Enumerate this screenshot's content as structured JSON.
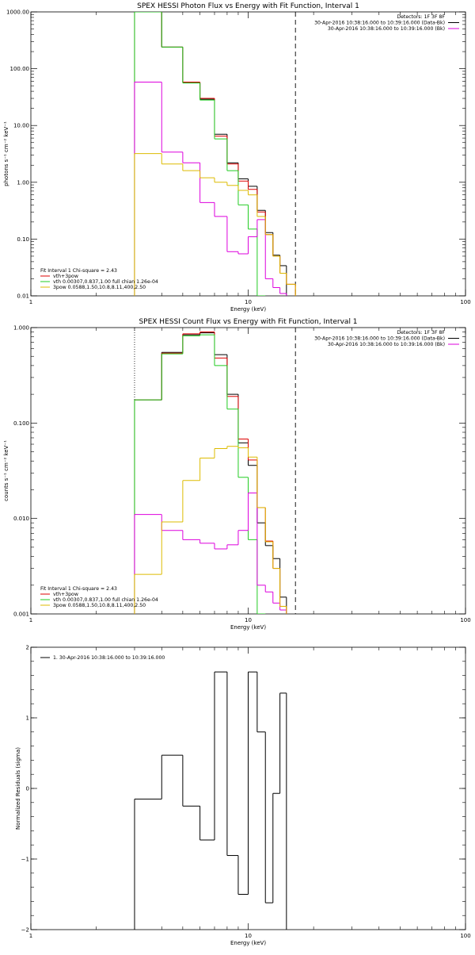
{
  "colors": {
    "black": "#000000",
    "red": "#dd0000",
    "green": "#22cc22",
    "magenta": "#dd00dd",
    "yellow": "#ddbb00"
  },
  "chart_data": [
    {
      "type": "line",
      "title": "SPEX HESSI Photon Flux vs Energy with Fit Function, Interval 1",
      "xlabel": "Energy (keV)",
      "ylabel": "photons s⁻¹ cm⁻² keV⁻¹",
      "xscale": "log",
      "yscale": "log",
      "xlim": [
        1,
        100
      ],
      "ylim": [
        0.01,
        1000
      ],
      "xticks": [
        {
          "v": 1,
          "label": "1"
        },
        {
          "v": 10,
          "label": "10"
        },
        {
          "v": 100,
          "label": "100"
        }
      ],
      "yticks": [
        {
          "v": 0.01,
          "label": "0.01"
        },
        {
          "v": 0.1,
          "label": "0.10"
        },
        {
          "v": 1,
          "label": "1.00"
        },
        {
          "v": 10,
          "label": "10.00"
        },
        {
          "v": 100,
          "label": "100.00"
        },
        {
          "v": 1000,
          "label": "1000.00"
        }
      ],
      "fit_range": [
        3,
        16.5
      ],
      "top_legend": [
        {
          "text": "Detectors: 1F 3F 8F",
          "color": ""
        },
        {
          "text": "30-Apr-2016 10:38:16.000 to 10:39:16.000 (Data-Bk)",
          "color": "black"
        },
        {
          "text": "30-Apr-2016 10:38:16.000 to 10:39:16.000 (Bk)",
          "color": "magenta"
        }
      ],
      "fit_legend": {
        "header": "Fit Interval 1    Chi-square = 2.43",
        "entries": [
          {
            "text": "vth+3pow",
            "color": "red"
          },
          {
            "text": "vth 0.00307,0.837,1.00  full chian 1.26e-04",
            "color": "green"
          },
          {
            "text": "3pow 0.0588,1.50,10.8,8.11,400,2.50",
            "color": "yellow"
          }
        ]
      },
      "bin_edges": [
        3,
        4,
        5,
        6,
        7,
        8,
        9,
        10,
        11,
        12,
        13,
        14,
        15,
        16.5,
        18
      ],
      "series": [
        {
          "color": "black",
          "values": [
            1000,
            240,
            57,
            29,
            7,
            2.2,
            1.15,
            0.85,
            0.32,
            0.13,
            0.052,
            0.034,
            null,
            null
          ]
        },
        {
          "color": "red",
          "values": [
            1000,
            240,
            58,
            30,
            6.5,
            2.1,
            1.05,
            0.75,
            0.3,
            0.12,
            0.05,
            0.025,
            0.016,
            null
          ]
        },
        {
          "color": "green",
          "values": [
            1000,
            240,
            56,
            28,
            5.8,
            1.6,
            0.4,
            0.15,
            0.01,
            null,
            null,
            null,
            null,
            null
          ]
        },
        {
          "color": "magenta",
          "values": [
            58,
            3.4,
            2.2,
            0.44,
            0.25,
            0.06,
            0.055,
            0.11,
            0.22,
            0.02,
            0.014,
            0.011,
            null,
            null
          ]
        },
        {
          "color": "yellow",
          "values": [
            3.2,
            2.1,
            1.6,
            1.2,
            1.0,
            0.88,
            0.72,
            0.6,
            0.25,
            0.12,
            0.05,
            0.025,
            0.016,
            null
          ]
        }
      ]
    },
    {
      "type": "line",
      "title": "SPEX HESSI Count Flux vs Energy with Fit Function, Interval 1",
      "xlabel": "Energy (keV)",
      "ylabel": "counts s⁻¹ cm⁻² keV⁻¹",
      "xscale": "log",
      "yscale": "log",
      "xlim": [
        1,
        100
      ],
      "ylim": [
        0.001,
        1
      ],
      "xticks": [
        {
          "v": 1,
          "label": "1"
        },
        {
          "v": 10,
          "label": "10"
        },
        {
          "v": 100,
          "label": "100"
        }
      ],
      "yticks": [
        {
          "v": 0.001,
          "label": "0.001"
        },
        {
          "v": 0.01,
          "label": "0.010"
        },
        {
          "v": 0.1,
          "label": "0.100"
        },
        {
          "v": 1,
          "label": "1.000"
        }
      ],
      "fit_range": [
        3,
        16.5
      ],
      "top_legend": [
        {
          "text": "Detectors: 1F 3F 8F",
          "color": ""
        },
        {
          "text": "30-Apr-2016 10:38:16.000 to 10:39:16.000 (Data-Bk)",
          "color": "black"
        },
        {
          "text": "30-Apr-2016 10:38:16.000 to 10:39:16.000 (Bk)",
          "color": "magenta"
        }
      ],
      "fit_legend": {
        "header": "Fit Interval 1    Chi-square = 2.43",
        "entries": [
          {
            "text": "vth+3pow",
            "color": "red"
          },
          {
            "text": "vth 0.00307,0.837,1.00  full chian 1.26e-04",
            "color": "green"
          },
          {
            "text": "3pow 0.0588,1.50,10.8,8.11,400,2.50",
            "color": "yellow"
          }
        ]
      },
      "bin_edges": [
        3,
        4,
        5,
        6,
        7,
        8,
        9,
        10,
        11,
        12,
        13,
        14,
        15,
        16.5,
        18
      ],
      "series": [
        {
          "color": "black",
          "values": [
            0.175,
            0.55,
            0.84,
            0.88,
            0.52,
            0.2,
            0.062,
            0.036,
            0.009,
            0.0052,
            0.0038,
            0.0015,
            null,
            null
          ]
        },
        {
          "color": "red",
          "values": [
            0.175,
            0.54,
            0.86,
            0.9,
            0.48,
            0.19,
            0.068,
            0.041,
            0.013,
            0.0058,
            0.003,
            0.0012,
            0.0009,
            null
          ]
        },
        {
          "color": "green",
          "values": [
            0.175,
            0.53,
            0.82,
            0.84,
            0.4,
            0.14,
            0.027,
            0.006,
            0.001,
            null,
            null,
            null,
            null,
            null
          ]
        },
        {
          "color": "magenta",
          "values": [
            0.011,
            0.0075,
            0.006,
            0.0055,
            0.0048,
            0.0053,
            0.0075,
            0.0185,
            0.002,
            0.0017,
            0.0013,
            0.0011,
            null,
            null
          ]
        },
        {
          "color": "yellow",
          "values": [
            0.0026,
            0.0092,
            0.025,
            0.043,
            0.054,
            0.057,
            0.055,
            0.044,
            0.013,
            0.0057,
            0.003,
            0.0012,
            0.0009,
            null
          ]
        }
      ]
    },
    {
      "type": "line",
      "title": "",
      "xlabel": "Energy (keV)",
      "ylabel": "Normalized Residuals (sigma)",
      "xscale": "log",
      "yscale": "linear",
      "xlim": [
        1,
        100
      ],
      "ylim": [
        -2,
        2
      ],
      "xticks": [
        {
          "v": 1,
          "label": "1"
        },
        {
          "v": 10,
          "label": "10"
        },
        {
          "v": 100,
          "label": "100"
        }
      ],
      "yticks": [
        {
          "v": -2,
          "label": "−2"
        },
        {
          "v": -1,
          "label": "−1"
        },
        {
          "v": 0,
          "label": "0"
        },
        {
          "v": 1,
          "label": "1"
        },
        {
          "v": 2,
          "label": "2"
        }
      ],
      "legend": "1. 30-Apr-2016 10:38:16.000 to 10:39:16.000",
      "bin_edges": [
        3,
        4,
        5,
        6,
        7,
        8,
        9,
        10,
        11,
        12,
        13,
        14,
        15,
        16.5
      ],
      "series": [
        {
          "color": "black",
          "values": [
            -0.15,
            0.47,
            -0.25,
            -0.73,
            1.65,
            -0.95,
            -1.5,
            1.65,
            0.8,
            -1.62,
            -0.07,
            1.35,
            null
          ]
        }
      ]
    }
  ]
}
